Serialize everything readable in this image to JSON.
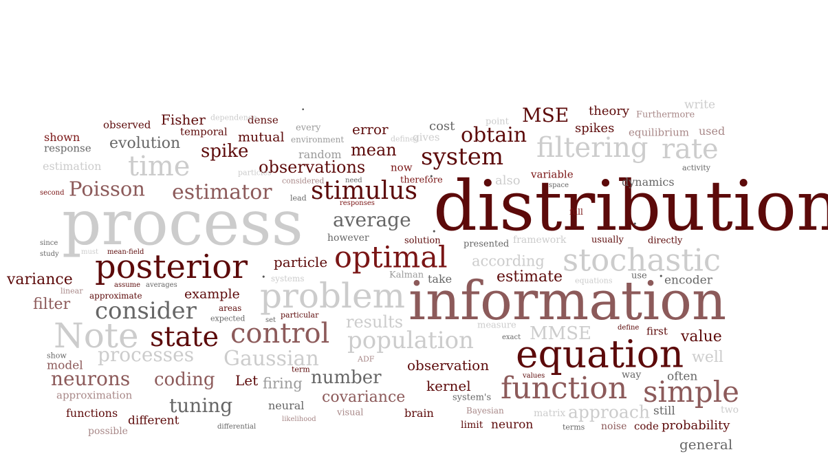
{
  "colors": {
    "dark_maroon": "#5c0a0a",
    "maroon": "#7a1515",
    "rose": "#8c5a5a",
    "taupe": "#a88888",
    "dark_gray": "#666666",
    "gray": "#9a9a9a",
    "light_gray": "#cccccc"
  },
  "words": [
    {
      "text": "distribution",
      "color": "dark_maroon"
    },
    {
      "text": "process",
      "color": "light_gray"
    },
    {
      "text": "information",
      "color": "rose"
    },
    {
      "text": "equation",
      "color": "dark_maroon"
    },
    {
      "text": "posterior",
      "color": "dark_maroon"
    },
    {
      "text": "problem",
      "color": "light_gray"
    },
    {
      "text": "optimal",
      "color": "maroon"
    },
    {
      "text": "Note",
      "color": "light_gray"
    },
    {
      "text": "stochastic",
      "color": "light_gray"
    },
    {
      "text": "state",
      "color": "dark_maroon"
    },
    {
      "text": "control",
      "color": "rose"
    },
    {
      "text": "function",
      "color": "rose"
    },
    {
      "text": "population",
      "color": "light_gray"
    },
    {
      "text": "stimulus",
      "color": "dark_maroon"
    },
    {
      "text": "system",
      "color": "dark_maroon"
    },
    {
      "text": "filtering",
      "color": "light_gray"
    },
    {
      "text": "rate",
      "color": "light_gray"
    },
    {
      "text": "time",
      "color": "light_gray"
    },
    {
      "text": "simple",
      "color": "rose"
    },
    {
      "text": "consider",
      "color": "dark_gray"
    },
    {
      "text": "estimator",
      "color": "rose"
    },
    {
      "text": "Poisson",
      "color": "rose"
    },
    {
      "text": "Gaussian",
      "color": "light_gray"
    },
    {
      "text": "processes",
      "color": "light_gray"
    },
    {
      "text": "neurons",
      "color": "rose"
    },
    {
      "text": "average",
      "color": "dark_gray"
    },
    {
      "text": "obtain",
      "color": "dark_maroon"
    },
    {
      "text": "coding",
      "color": "rose"
    },
    {
      "text": "MMSE",
      "color": "light_gray"
    },
    {
      "text": "approach",
      "color": "light_gray"
    },
    {
      "text": "number",
      "color": "dark_gray"
    },
    {
      "text": "tuning",
      "color": "dark_gray"
    },
    {
      "text": "results",
      "color": "light_gray"
    },
    {
      "text": "observations",
      "color": "dark_maroon"
    },
    {
      "text": "mean",
      "color": "dark_maroon"
    },
    {
      "text": "spike",
      "color": "dark_maroon"
    },
    {
      "text": "MSE",
      "color": "dark_maroon"
    },
    {
      "text": "evolution",
      "color": "dark_gray"
    },
    {
      "text": "covariance",
      "color": "rose"
    },
    {
      "text": "according",
      "color": "light_gray"
    },
    {
      "text": "estimate",
      "color": "dark_maroon"
    },
    {
      "text": "variance",
      "color": "dark_maroon"
    },
    {
      "text": "filter",
      "color": "rose"
    },
    {
      "text": "value",
      "color": "dark_maroon"
    },
    {
      "text": "well",
      "color": "light_gray"
    },
    {
      "text": "observation",
      "color": "dark_maroon"
    },
    {
      "text": "firing",
      "color": "gray"
    },
    {
      "text": "kernel",
      "color": "dark_maroon"
    },
    {
      "text": "probability",
      "color": "dark_maroon"
    },
    {
      "text": "general",
      "color": "dark_gray"
    },
    {
      "text": "example",
      "color": "dark_maroon"
    },
    {
      "text": "particle",
      "color": "dark_maroon"
    },
    {
      "text": "Let",
      "color": "dark_maroon"
    },
    {
      "text": "error",
      "color": "dark_maroon"
    },
    {
      "text": "Fisher",
      "color": "dark_maroon"
    },
    {
      "text": "spikes",
      "color": "dark_maroon"
    },
    {
      "text": "theory",
      "color": "dark_maroon"
    },
    {
      "text": "mutual",
      "color": "dark_maroon"
    },
    {
      "text": "cost",
      "color": "dark_gray"
    },
    {
      "text": "shown",
      "color": "maroon"
    },
    {
      "text": "response",
      "color": "dark_gray"
    },
    {
      "text": "observed",
      "color": "dark_maroon"
    },
    {
      "text": "temporal",
      "color": "dark_maroon"
    },
    {
      "text": "dense",
      "color": "dark_maroon"
    },
    {
      "text": "estimation",
      "color": "light_gray"
    },
    {
      "text": "random",
      "color": "gray"
    },
    {
      "text": "now",
      "color": "maroon"
    },
    {
      "text": "therefore",
      "color": "maroon"
    },
    {
      "text": "also",
      "color": "light_gray"
    },
    {
      "text": "variable",
      "color": "maroon"
    },
    {
      "text": "dynamics",
      "color": "dark_gray"
    },
    {
      "text": "write",
      "color": "light_gray"
    },
    {
      "text": "used",
      "color": "taupe"
    },
    {
      "text": "equilibrium",
      "color": "taupe"
    },
    {
      "text": "Furthermore",
      "color": "taupe"
    },
    {
      "text": "point",
      "color": "light_gray"
    },
    {
      "text": "gives",
      "color": "light_gray"
    },
    {
      "text": "every",
      "color": "gray"
    },
    {
      "text": "environment",
      "color": "gray"
    },
    {
      "text": "dependence",
      "color": "light_gray"
    },
    {
      "text": "defined",
      "color": "light_gray"
    },
    {
      "text": "need",
      "color": "dark_gray"
    },
    {
      "text": "considered",
      "color": "taupe"
    },
    {
      "text": "particles",
      "color": "light_gray"
    },
    {
      "text": "lead",
      "color": "dark_gray"
    },
    {
      "text": "responses",
      "color": "maroon"
    },
    {
      "text": "second",
      "color": "maroon"
    },
    {
      "text": "activity",
      "color": "dark_gray"
    },
    {
      "text": "space",
      "color": "dark_gray"
    },
    {
      "text": "full",
      "color": "maroon"
    },
    {
      "text": "framework",
      "color": "light_gray"
    },
    {
      "text": "usually",
      "color": "dark_maroon"
    },
    {
      "text": "directly",
      "color": "dark_maroon"
    },
    {
      "text": "presented",
      "color": "dark_gray"
    },
    {
      "text": "solution",
      "color": "dark_maroon"
    },
    {
      "text": "however",
      "color": "dark_gray"
    },
    {
      "text": "since",
      "color": "dark_gray"
    },
    {
      "text": "study",
      "color": "dark_gray"
    },
    {
      "text": "must",
      "color": "light_gray"
    },
    {
      "text": "mean-field",
      "color": "dark_maroon"
    },
    {
      "text": "systems",
      "color": "light_gray"
    },
    {
      "text": "Kalman",
      "color": "gray"
    },
    {
      "text": "take",
      "color": "dark_gray"
    },
    {
      "text": "equations",
      "color": "light_gray"
    },
    {
      "text": "use",
      "color": "dark_gray"
    },
    {
      "text": "encoder",
      "color": "dark_gray"
    },
    {
      "text": "assume",
      "color": "dark_maroon"
    },
    {
      "text": "averages",
      "color": "dark_gray"
    },
    {
      "text": "linear",
      "color": "taupe"
    },
    {
      "text": "approximate",
      "color": "dark_maroon"
    },
    {
      "text": "areas",
      "color": "dark_maroon"
    },
    {
      "text": "expected",
      "color": "dark_gray"
    },
    {
      "text": "set",
      "color": "dark_gray"
    },
    {
      "text": "particular",
      "color": "dark_maroon"
    },
    {
      "text": "measure",
      "color": "light_gray"
    },
    {
      "text": "define",
      "color": "dark_maroon"
    },
    {
      "text": "exact",
      "color": "dark_gray"
    },
    {
      "text": "first",
      "color": "dark_maroon"
    },
    {
      "text": "show",
      "color": "dark_gray"
    },
    {
      "text": "model",
      "color": "rose"
    },
    {
      "text": "term",
      "color": "dark_maroon"
    },
    {
      "text": "ADF",
      "color": "taupe"
    },
    {
      "text": "way",
      "color": "dark_gray"
    },
    {
      "text": "often",
      "color": "dark_gray"
    },
    {
      "text": "values",
      "color": "dark_maroon"
    },
    {
      "text": "approximation",
      "color": "taupe"
    },
    {
      "text": "system's",
      "color": "dark_gray"
    },
    {
      "text": "neural",
      "color": "dark_gray"
    },
    {
      "text": "visual",
      "color": "taupe"
    },
    {
      "text": "Bayesian",
      "color": "taupe"
    },
    {
      "text": "matrix",
      "color": "light_gray"
    },
    {
      "text": "still",
      "color": "dark_gray"
    },
    {
      "text": "two",
      "color": "light_gray"
    },
    {
      "text": "functions",
      "color": "dark_maroon"
    },
    {
      "text": "different",
      "color": "dark_maroon"
    },
    {
      "text": "brain",
      "color": "dark_maroon"
    },
    {
      "text": "likelihood",
      "color": "taupe"
    },
    {
      "text": "limit",
      "color": "dark_maroon"
    },
    {
      "text": "neuron",
      "color": "dark_maroon"
    },
    {
      "text": "terms",
      "color": "dark_gray"
    },
    {
      "text": "noise",
      "color": "rose"
    },
    {
      "text": "code",
      "color": "dark_maroon"
    },
    {
      "text": "possible",
      "color": "taupe"
    },
    {
      "text": "differential",
      "color": "dark_gray"
    }
  ]
}
